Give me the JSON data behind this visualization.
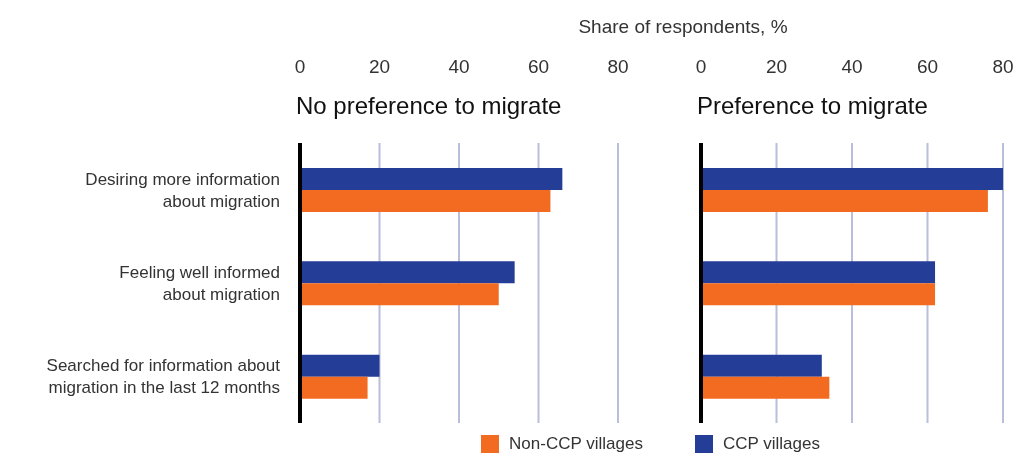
{
  "chart_data": [
    {
      "type": "bar",
      "orientation": "horizontal",
      "title": "No preference to migrate",
      "xlabel": "Share of respondents, %",
      "categories": [
        "Desiring more information about migration",
        "Feeling well informed about migration",
        "Searched for information about migration in the last 12 months"
      ],
      "series": [
        {
          "name": "Non-CCP villages",
          "color": "#f26b21",
          "values": [
            63,
            50,
            17
          ]
        },
        {
          "name": "CCP villages",
          "color": "#243d96",
          "values": [
            66,
            54,
            20
          ]
        }
      ],
      "xlim": [
        0,
        80
      ],
      "xticks": [
        0,
        20,
        40,
        60,
        80
      ],
      "grid": "x",
      "legend": "bottom"
    },
    {
      "type": "bar",
      "orientation": "horizontal",
      "title": "Preference to migrate",
      "categories": [
        null,
        null,
        null
      ],
      "series": [
        {
          "color": "#f26b21",
          "values": [
            76,
            62,
            34
          ]
        },
        {
          "color": "#243d96",
          "values": [
            80,
            62,
            32
          ]
        }
      ],
      "xlim": [
        0,
        80
      ],
      "xticks": [
        0,
        20,
        40,
        60,
        80
      ],
      "grid": "x"
    }
  ]
}
